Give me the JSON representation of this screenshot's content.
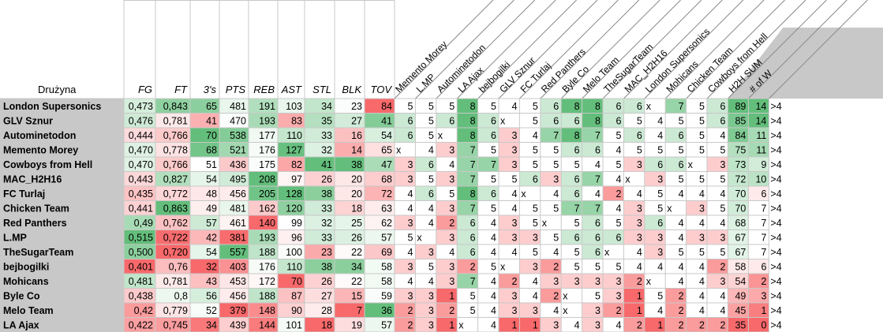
{
  "header": {
    "team_label": "Drużyna",
    "stat_columns": [
      "FG",
      "FT",
      "3's",
      "PTS",
      "REB",
      "AST",
      "STL",
      "BLK",
      "TOV"
    ],
    "h2h_columns": [
      "Memento Morey",
      "L.MP",
      "Autominetodon",
      "LA Ajax",
      "bejbogilki",
      "GLV Sznur",
      "FC Turlaj",
      "Red Panthers",
      "Byle Co",
      "Melo Team",
      "TheSugarTeam",
      "MAC_H2H16",
      "London Supersonics",
      "Mohicans",
      "Chicken Team",
      "Cowboys from Hell"
    ],
    "sum_label": "H2H SUM",
    "w_label": "# of W"
  },
  "rows": [
    {
      "team": "London Supersonics",
      "stats": [
        "0,473",
        "0,843",
        "65",
        "481",
        "191",
        "103",
        "34",
        "23",
        "84"
      ],
      "h2h": [
        "5",
        "5",
        "5",
        "8",
        "5",
        "4",
        "5",
        "6",
        "8",
        "8",
        "6",
        "6",
        "x",
        "7",
        "5",
        "6"
      ],
      "sum": "89",
      "w": "14",
      "gt": ">4"
    },
    {
      "team": "GLV Sznur",
      "stats": [
        "0,476",
        "0,781",
        "41",
        "470",
        "193",
        "83",
        "35",
        "27",
        "41"
      ],
      "h2h": [
        "6",
        "5",
        "6",
        "8",
        "6",
        "x",
        "5",
        "6",
        "6",
        "8",
        "6",
        "5",
        "4",
        "5",
        "5",
        "6"
      ],
      "sum": "85",
      "w": "14",
      "gt": ">4"
    },
    {
      "team": "Autominetodon",
      "stats": [
        "0,444",
        "0,766",
        "70",
        "538",
        "177",
        "110",
        "33",
        "16",
        "54"
      ],
      "h2h": [
        "6",
        "5",
        "x",
        "8",
        "6",
        "3",
        "4",
        "7",
        "8",
        "7",
        "5",
        "6",
        "4",
        "6",
        "5",
        "4"
      ],
      "sum": "84",
      "w": "11",
      "gt": ">4"
    },
    {
      "team": "Memento Morey",
      "stats": [
        "0,470",
        "0,778",
        "68",
        "521",
        "176",
        "127",
        "32",
        "14",
        "65"
      ],
      "h2h": [
        "x",
        "4",
        "3",
        "7",
        "5",
        "3",
        "5",
        "5",
        "6",
        "6",
        "4",
        "5",
        "5",
        "5",
        "5",
        "5"
      ],
      "sum": "75",
      "w": "11",
      "gt": ">4"
    },
    {
      "team": "Cowboys from Hell",
      "stats": [
        "0,470",
        "0,766",
        "51",
        "436",
        "175",
        "82",
        "41",
        "38",
        "47"
      ],
      "h2h": [
        "3",
        "6",
        "4",
        "7",
        "7",
        "3",
        "5",
        "5",
        "5",
        "4",
        "5",
        "3",
        "6",
        "6",
        "x",
        "3"
      ],
      "sum": "73",
      "w": "9",
      "gt": ">4"
    },
    {
      "team": "MAC_H2H16",
      "stats": [
        "0,443",
        "0,827",
        "54",
        "495",
        "208",
        "97",
        "26",
        "20",
        "68"
      ],
      "h2h": [
        "3",
        "5",
        "3",
        "7",
        "5",
        "5",
        "6",
        "3",
        "6",
        "7",
        "4",
        "x",
        "3",
        "5",
        "5",
        "5"
      ],
      "sum": "72",
      "w": "10",
      "gt": ">4"
    },
    {
      "team": "FC Turlaj",
      "stats": [
        "0,435",
        "0,772",
        "48",
        "456",
        "205",
        "128",
        "38",
        "20",
        "72"
      ],
      "h2h": [
        "4",
        "6",
        "5",
        "8",
        "6",
        "4",
        "x",
        "4",
        "6",
        "4",
        "2",
        "4",
        "5",
        "4",
        "4",
        "4"
      ],
      "sum": "70",
      "w": "6",
      "gt": ">4"
    },
    {
      "team": "Chicken Team",
      "stats": [
        "0,441",
        "0,863",
        "49",
        "481",
        "162",
        "120",
        "33",
        "18",
        "63"
      ],
      "h2h": [
        "4",
        "4",
        "3",
        "7",
        "5",
        "4",
        "5",
        "5",
        "7",
        "7",
        "4",
        "3",
        "5",
        "x",
        "3",
        "5"
      ],
      "sum": "70",
      "w": "7",
      "gt": ">4"
    },
    {
      "team": "Red Panthers",
      "stats": [
        "0,49",
        "0,762",
        "57",
        "461",
        "140",
        "99",
        "32",
        "25",
        "62"
      ],
      "h2h": [
        "3",
        "4",
        "2",
        "6",
        "4",
        "3",
        "5",
        "x",
        "5",
        "6",
        "5",
        "3",
        "6",
        "4",
        "4",
        "4"
      ],
      "sum": "68",
      "w": "7",
      "gt": ">4"
    },
    {
      "team": "L.MP",
      "stats": [
        "0,515",
        "0,722",
        "42",
        "381",
        "193",
        "96",
        "33",
        "26",
        "57"
      ],
      "h2h": [
        "5",
        "x",
        "3",
        "6",
        "4",
        "3",
        "3",
        "5",
        "6",
        "6",
        "6",
        "3",
        "3",
        "4",
        "3",
        "3"
      ],
      "sum": "67",
      "w": "7",
      "gt": ">4"
    },
    {
      "team": "TheSugarTeam",
      "stats": [
        "0,500",
        "0,720",
        "54",
        "557",
        "188",
        "100",
        "23",
        "22",
        "69"
      ],
      "h2h": [
        "4",
        "3",
        "4",
        "6",
        "4",
        "4",
        "5",
        "4",
        "5",
        "6",
        "x",
        "4",
        "3",
        "5",
        "5",
        "5"
      ],
      "sum": "67",
      "w": "7",
      "gt": ">4"
    },
    {
      "team": "bejbogilki",
      "stats": [
        "0,401",
        "0,76",
        "32",
        "403",
        "176",
        "110",
        "38",
        "34",
        "58"
      ],
      "h2h": [
        "3",
        "5",
        "3",
        "2",
        "5",
        "x",
        "3",
        "2",
        "5",
        "5",
        "5",
        "4",
        "4",
        "4",
        "4",
        "2"
      ],
      "sum": "58",
      "w": "6",
      "gt": ">4"
    },
    {
      "team": "Mohicans",
      "stats": [
        "0,481",
        "0,781",
        "43",
        "453",
        "172",
        "70",
        "26",
        "22",
        "58"
      ],
      "h2h": [
        "4",
        "4",
        "3",
        "7",
        "4",
        "2",
        "4",
        "3",
        "3",
        "3",
        "3",
        "2",
        "x",
        "4",
        "4",
        "3"
      ],
      "sum": "54",
      "w": "2",
      "gt": ">4"
    },
    {
      "team": "Byle Co",
      "stats": [
        "0,438",
        "0,8",
        "56",
        "456",
        "188",
        "87",
        "27",
        "15",
        "59"
      ],
      "h2h": [
        "3",
        "3",
        "1",
        "5",
        "4",
        "3",
        "4",
        "2",
        "x",
        "5",
        "3",
        "1",
        "5",
        "2",
        "4",
        "4"
      ],
      "sum": "49",
      "w": "3",
      "gt": ">4"
    },
    {
      "team": "Melo Team",
      "stats": [
        "0,42",
        "0,779",
        "52",
        "379",
        "148",
        "90",
        "28",
        "7",
        "36"
      ],
      "h2h": [
        "2",
        "3",
        "2",
        "5",
        "4",
        "3",
        "3",
        "4",
        "x",
        "3",
        "2",
        "1",
        "4",
        "2",
        "4",
        "4"
      ],
      "sum": "45",
      "w": "1",
      "gt": ">4"
    },
    {
      "team": "LA Ajax",
      "stats": [
        "0,422",
        "0,745",
        "34",
        "439",
        "144",
        "101",
        "18",
        "19",
        "57"
      ],
      "h2h": [
        "2",
        "3",
        "1",
        "x",
        "4",
        "1",
        "1",
        "3",
        "4",
        "3",
        "4",
        "2",
        "1",
        "2",
        "2",
        "2"
      ],
      "sum": "35",
      "w": "0",
      "gt": ">4"
    }
  ],
  "colors": {
    "grid": "#c8c8c8",
    "team_bg": "#c8c8c8",
    "green_strong": "#63be7b",
    "red_strong": "#f8696b",
    "neutral": "#ffffff"
  }
}
